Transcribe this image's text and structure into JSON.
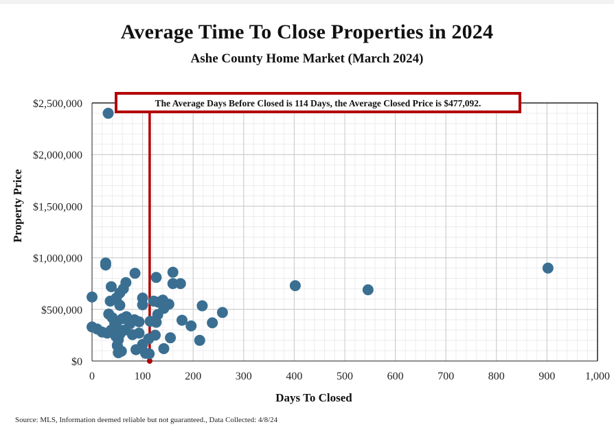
{
  "header": {
    "title": "Average Time To Close Properties in 2024",
    "subtitle": "Ashe County Home Market (March 2024)"
  },
  "footer": {
    "source": "Source: MLS, Information deemed reliable but not guaranteed., Data Collected: 4/8/24"
  },
  "colors": {
    "point": "#3a6f92",
    "average_line": "#b20000",
    "callout_border": "#b20000",
    "major_grid": "#c8c8c8",
    "minor_grid": "#ececec"
  },
  "chart_data": {
    "type": "scatter",
    "title": "Average Time To Close Properties in 2024",
    "subtitle": "Ashe County Home Market (March 2024)",
    "xlabel": "Days To Closed",
    "ylabel": "Property Price",
    "xlim": [
      0,
      1000
    ],
    "ylim": [
      0,
      2500000
    ],
    "xticks": [
      0,
      100,
      200,
      300,
      400,
      500,
      600,
      700,
      800,
      900,
      1000
    ],
    "xtick_labels": [
      "0",
      "100",
      "200",
      "300",
      "400",
      "500",
      "600",
      "700",
      "800",
      "900",
      "1,000"
    ],
    "yticks": [
      0,
      500000,
      1000000,
      1500000,
      2000000,
      2500000
    ],
    "ytick_labels": [
      "$0",
      "$500,000",
      "$1,000,000",
      "$1,500,000",
      "$2,000,000",
      "$2,500,000"
    ],
    "grid": true,
    "annotation": "The Average Days Before Closed is 114 Days, the Average Closed Price is $477,092.",
    "average_days": 114,
    "average_price": 477092,
    "points": [
      {
        "x": 32,
        "y": 2400000
      },
      {
        "x": 27,
        "y": 950000
      },
      {
        "x": 27,
        "y": 930000
      },
      {
        "x": 85,
        "y": 850000
      },
      {
        "x": 160,
        "y": 860000
      },
      {
        "x": 902,
        "y": 900000
      },
      {
        "x": 127,
        "y": 810000
      },
      {
        "x": 67,
        "y": 760000
      },
      {
        "x": 160,
        "y": 750000
      },
      {
        "x": 175,
        "y": 750000
      },
      {
        "x": 38,
        "y": 720000
      },
      {
        "x": 402,
        "y": 730000
      },
      {
        "x": 62,
        "y": 700000
      },
      {
        "x": 546,
        "y": 690000
      },
      {
        "x": 55,
        "y": 660000
      },
      {
        "x": 0,
        "y": 620000
      },
      {
        "x": 100,
        "y": 610000
      },
      {
        "x": 48,
        "y": 610000
      },
      {
        "x": 36,
        "y": 580000
      },
      {
        "x": 140,
        "y": 590000
      },
      {
        "x": 122,
        "y": 580000
      },
      {
        "x": 131,
        "y": 570000
      },
      {
        "x": 152,
        "y": 550000
      },
      {
        "x": 100,
        "y": 545000
      },
      {
        "x": 55,
        "y": 540000
      },
      {
        "x": 218,
        "y": 535000
      },
      {
        "x": 142,
        "y": 510000
      },
      {
        "x": 258,
        "y": 470000
      },
      {
        "x": 33,
        "y": 455000
      },
      {
        "x": 130,
        "y": 450000
      },
      {
        "x": 68,
        "y": 430000
      },
      {
        "x": 40,
        "y": 420000
      },
      {
        "x": 60,
        "y": 410000
      },
      {
        "x": 84,
        "y": 400000
      },
      {
        "x": 178,
        "y": 395000
      },
      {
        "x": 93,
        "y": 380000
      },
      {
        "x": 115,
        "y": 385000
      },
      {
        "x": 127,
        "y": 375000
      },
      {
        "x": 238,
        "y": 370000
      },
      {
        "x": 45,
        "y": 365000
      },
      {
        "x": 75,
        "y": 360000
      },
      {
        "x": 196,
        "y": 340000
      },
      {
        "x": 0,
        "y": 330000
      },
      {
        "x": 10,
        "y": 310000
      },
      {
        "x": 50,
        "y": 320000
      },
      {
        "x": 65,
        "y": 300000
      },
      {
        "x": 38,
        "y": 300000
      },
      {
        "x": 20,
        "y": 280000
      },
      {
        "x": 30,
        "y": 270000
      },
      {
        "x": 93,
        "y": 270000
      },
      {
        "x": 55,
        "y": 260000
      },
      {
        "x": 80,
        "y": 255000
      },
      {
        "x": 125,
        "y": 250000
      },
      {
        "x": 47,
        "y": 240000
      },
      {
        "x": 155,
        "y": 225000
      },
      {
        "x": 112,
        "y": 215000
      },
      {
        "x": 52,
        "y": 205000
      },
      {
        "x": 213,
        "y": 200000
      },
      {
        "x": 100,
        "y": 160000
      },
      {
        "x": 50,
        "y": 150000
      },
      {
        "x": 142,
        "y": 120000
      },
      {
        "x": 87,
        "y": 110000
      },
      {
        "x": 58,
        "y": 95000
      },
      {
        "x": 52,
        "y": 80000
      },
      {
        "x": 106,
        "y": 75000
      },
      {
        "x": 113,
        "y": 70000
      }
    ]
  }
}
